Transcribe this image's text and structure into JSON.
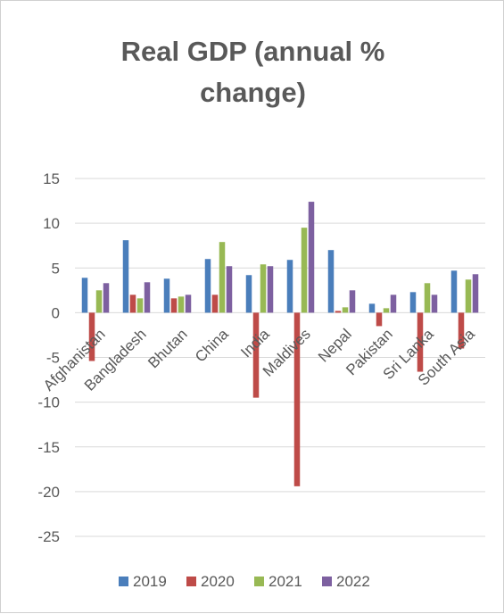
{
  "chart_data": {
    "type": "bar",
    "title_lines": [
      "Real GDP (annual %",
      "change)"
    ],
    "categories": [
      "Afghanistan",
      "Bangladesh",
      "Bhutan",
      "China",
      "India",
      "Maldives",
      "Nepal",
      "Pakistan",
      "Sri Lanka",
      "South Asia"
    ],
    "series": [
      {
        "name": "2019",
        "color": "#4a7ebb",
        "values": [
          3.9,
          8.1,
          3.8,
          6.0,
          4.2,
          5.9,
          7.0,
          1.0,
          2.3,
          4.7
        ]
      },
      {
        "name": "2020",
        "color": "#be4b48",
        "values": [
          -5.4,
          2.0,
          1.6,
          2.0,
          -9.5,
          -19.4,
          0.2,
          -1.5,
          -6.6,
          -4.0
        ]
      },
      {
        "name": "2021",
        "color": "#98b954",
        "values": [
          2.5,
          1.6,
          1.8,
          7.9,
          5.4,
          9.5,
          0.6,
          0.5,
          3.3,
          3.7
        ]
      },
      {
        "name": "2022",
        "color": "#7d60a0",
        "values": [
          3.3,
          3.4,
          2.0,
          5.2,
          5.2,
          12.4,
          2.5,
          2.0,
          2.0,
          4.3
        ]
      }
    ],
    "y_ticks": [
      15,
      10,
      5,
      0,
      -5,
      -10,
      -15,
      -20,
      -25
    ],
    "ylim": [
      -25,
      15
    ],
    "grid": true,
    "legend_position": "bottom"
  }
}
